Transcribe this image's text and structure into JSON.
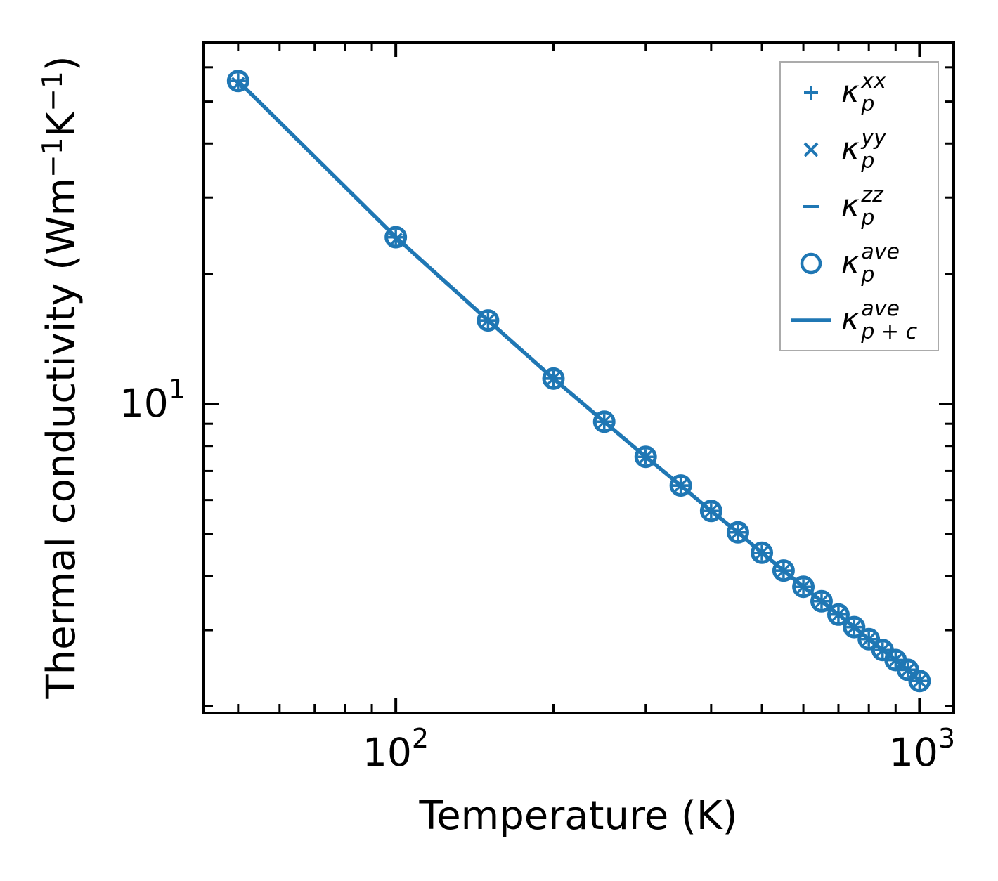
{
  "page": {
    "background": "#ffffff"
  },
  "chart_data": {
    "type": "line",
    "title": "",
    "xlabel": "Temperature (K)",
    "ylabel": "Thermal conductivity (Wm⁻¹K⁻¹)",
    "ylabel_parts": [
      "Thermal conductivity (Wm",
      "−1",
      "K",
      "−1",
      ")"
    ],
    "xscale": "log",
    "yscale": "log",
    "xlim": [
      43.0,
      1162.0
    ],
    "ylim": [
      1.93,
      68.6
    ],
    "grid": false,
    "legend_position": "upper right",
    "color": "#1f77b4",
    "legend_border_color": "#ababab",
    "x_major_ticks": [
      {
        "value": 100,
        "base": "10",
        "exp": "2"
      },
      {
        "value": 1000,
        "base": "10",
        "exp": "3"
      }
    ],
    "x_minor_ticks": [
      50,
      60,
      70,
      80,
      90,
      200,
      300,
      400,
      500,
      600,
      700,
      800,
      900
    ],
    "y_major_ticks": [
      {
        "value": 10,
        "base": "10",
        "exp": "1"
      }
    ],
    "y_minor_ticks": [
      2,
      3,
      4,
      5,
      6,
      7,
      8,
      9,
      20,
      30,
      40,
      50,
      60
    ],
    "temperatures": [
      50,
      100,
      150,
      200,
      250,
      300,
      350,
      400,
      450,
      500,
      550,
      600,
      650,
      700,
      750,
      800,
      850,
      900,
      950,
      1000
    ],
    "series": [
      {
        "id": "kappa_p_xx",
        "marker": "plus",
        "values": [
          55.8,
          24.3,
          15.6,
          11.45,
          9.1,
          7.55,
          6.48,
          5.66,
          5.05,
          4.53,
          4.12,
          3.78,
          3.5,
          3.26,
          3.05,
          2.86,
          2.7,
          2.56,
          2.43,
          2.29
        ]
      },
      {
        "id": "kappa_p_yy",
        "marker": "x",
        "values": [
          55.0,
          24.0,
          15.6,
          11.45,
          9.1,
          7.55,
          6.48,
          5.66,
          5.05,
          4.53,
          4.12,
          3.78,
          3.5,
          3.26,
          3.05,
          2.86,
          2.7,
          2.56,
          2.43,
          2.29
        ]
      },
      {
        "id": "kappa_p_zz",
        "marker": "hline",
        "values": [
          55.8,
          24.3,
          15.6,
          11.45,
          9.1,
          7.55,
          6.48,
          5.66,
          5.05,
          4.53,
          4.12,
          3.78,
          3.5,
          3.26,
          3.05,
          2.86,
          2.7,
          2.56,
          2.43,
          2.29
        ]
      },
      {
        "id": "kappa_p_ave",
        "marker": "circle",
        "values": [
          55.8,
          24.3,
          15.6,
          11.45,
          9.1,
          7.55,
          6.48,
          5.66,
          5.05,
          4.53,
          4.12,
          3.78,
          3.5,
          3.26,
          3.05,
          2.86,
          2.7,
          2.56,
          2.43,
          2.29
        ]
      },
      {
        "id": "kappa_p_plus_c_ave",
        "marker": "line",
        "values": [
          55.8,
          24.3,
          15.6,
          11.45,
          9.1,
          7.55,
          6.48,
          5.66,
          5.05,
          4.53,
          4.12,
          3.78,
          3.5,
          3.26,
          3.05,
          2.86,
          2.7,
          2.56,
          2.43,
          2.29
        ]
      }
    ],
    "legend_entries": [
      {
        "marker": "plus",
        "kappa": "κ",
        "sup": "xx",
        "sub": "p"
      },
      {
        "marker": "x",
        "kappa": "κ",
        "sup": "yy",
        "sub": "p"
      },
      {
        "marker": "hline",
        "kappa": "κ",
        "sup": "zz",
        "sub": "p"
      },
      {
        "marker": "circle",
        "kappa": "κ",
        "sup": "ave",
        "sub": "p"
      },
      {
        "marker": "line",
        "kappa": "κ",
        "sup": "ave",
        "sub": "p + c"
      }
    ]
  }
}
